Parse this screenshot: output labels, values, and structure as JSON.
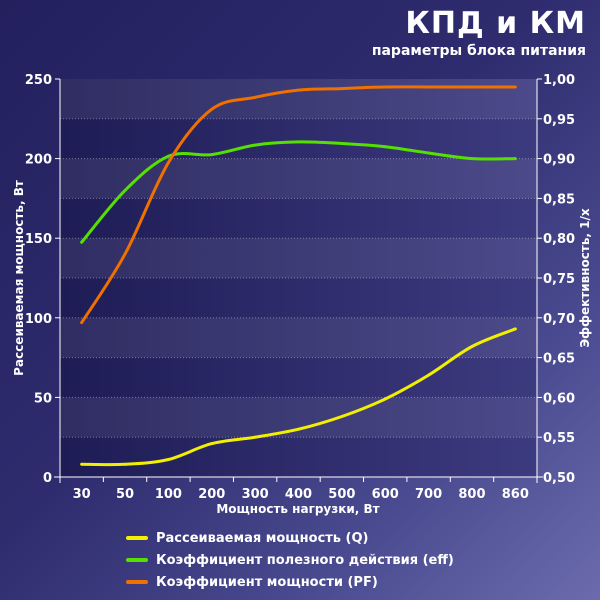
{
  "header": {
    "title": "КПД и КМ",
    "subtitle": "параметры блока питания"
  },
  "chart_data": {
    "type": "line",
    "title": "КПД и КМ",
    "subtitle": "параметры блока питания",
    "xlabel": "Мощность нагрузки, Вт",
    "ylabel_left": "Рассеиваемая мощность, Вт",
    "ylabel_right": "Эффективность, 1/x",
    "categories": [
      "30",
      "50",
      "100",
      "200",
      "300",
      "400",
      "500",
      "600",
      "700",
      "800",
      "860"
    ],
    "ylim_left": [
      0,
      250
    ],
    "yticks_left": [
      "0",
      "50",
      "100",
      "150",
      "200",
      "250"
    ],
    "ylim_right": [
      0.5,
      1.0
    ],
    "yticks_right": [
      "0,50",
      "0,55",
      "0,60",
      "0,65",
      "0,70",
      "0,75",
      "0,80",
      "0,85",
      "0,90",
      "0,95",
      "1,00"
    ],
    "legend_position": "bottom",
    "grid": true,
    "series": [
      {
        "name": "Рассеиваемая мощность (Q)",
        "axis": "left",
        "color": "#f2f000",
        "values": [
          8,
          8,
          11,
          21,
          25,
          30,
          38,
          49,
          64,
          82,
          93
        ]
      },
      {
        "name": "Коэффициент полезного действия (eff)",
        "axis": "right",
        "color": "#55e000",
        "values": [
          0.795,
          0.86,
          0.903,
          0.905,
          0.917,
          0.921,
          0.919,
          0.915,
          0.907,
          0.9,
          0.9
        ]
      },
      {
        "name": "Коэффициент мощности (PF)",
        "axis": "right",
        "color": "#f07000",
        "values": [
          0.694,
          0.78,
          0.895,
          0.962,
          0.977,
          0.986,
          0.988,
          0.99,
          0.99,
          0.99,
          0.99
        ]
      }
    ]
  }
}
